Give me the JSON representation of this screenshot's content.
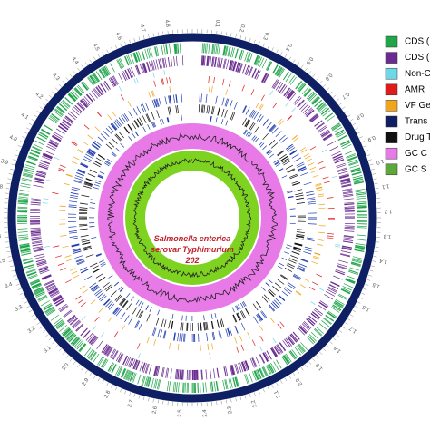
{
  "center_label": {
    "line1": "Salmonella enterica",
    "line2": "serovar Typhimurium",
    "line3": "202"
  },
  "scale_labels": [
    "0.1",
    "0.2",
    "0.3",
    "0.4",
    "0.5",
    "0.6",
    "0.7",
    "0.8",
    "0.9",
    "1.0",
    "1.1",
    "1.2",
    "1.3",
    "1.4",
    "1.5",
    "1.6",
    "1.7",
    "1.8",
    "1.9",
    "2.0",
    "2.1",
    "2.2",
    "2.3",
    "2.4",
    "2.5",
    "2.6",
    "2.7",
    "2.8",
    "2.9",
    "3.0",
    "3.1",
    "3.2",
    "3.3",
    "3.4",
    "3.5",
    "3.6",
    "3.7",
    "3.8",
    "3.9",
    "4.0",
    "4.1",
    "4.2",
    "4.3",
    "4.4",
    "4.5",
    "4.6",
    "4.7",
    "4.8"
  ],
  "legend": [
    {
      "label": "CDS (",
      "color": "#1fa54a"
    },
    {
      "label": "CDS (",
      "color": "#6a2c91"
    },
    {
      "label": "Non-C",
      "color": "#6fd8e8"
    },
    {
      "label": "AMR",
      "color": "#e01b1b"
    },
    {
      "label": "VF Ge",
      "color": "#f2a51c"
    },
    {
      "label": "Trans",
      "color": "#0e1f63"
    },
    {
      "label": "Drug T",
      "color": "#111111"
    },
    {
      "label": "GC C",
      "color": "#e87ae8"
    },
    {
      "label": "GC S",
      "color": "#5ea83a"
    }
  ]
}
